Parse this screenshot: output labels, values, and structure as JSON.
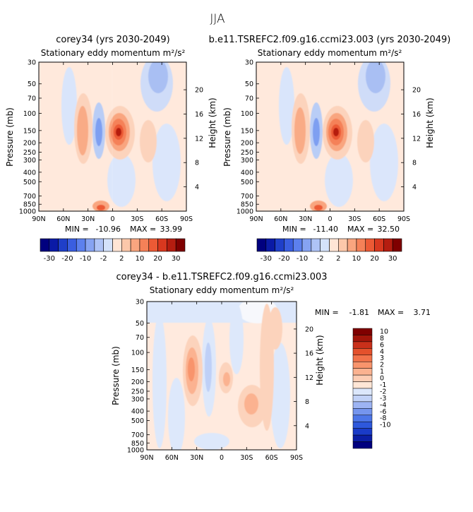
{
  "page": {
    "title": "JJA"
  },
  "shared": {
    "subtitle": "Stationary eddy momentum  m²/s²",
    "pressure_label": "Pressure (mb)",
    "height_label": "Height (km)",
    "pressure_ticks": [
      "30",
      "50",
      "70",
      "100",
      "150",
      "200",
      "250",
      "300",
      "400",
      "500",
      "700",
      "850",
      "1000"
    ],
    "height_ticks": [
      "20",
      "16",
      "12",
      "8",
      "4"
    ],
    "lat_ticks": [
      "90N",
      "60N",
      "30N",
      "0",
      "30S",
      "60S",
      "90S"
    ]
  },
  "chart_data": [
    {
      "type": "heatmap",
      "title": "corey34 (yrs 2030-2049)",
      "subtitle": "Stationary eddy momentum  m²/s²",
      "ylabel": "Pressure (mb)",
      "ylabel_right": "Height (km)",
      "stats": {
        "min_label": "MIN =",
        "min": "-10.96",
        "max_label": "MAX =",
        "max": "33.99"
      },
      "colorbar": {
        "orientation": "horizontal",
        "labels": [
          "-30",
          "-20",
          "-10",
          "-2",
          "2",
          "10",
          "20",
          "30"
        ]
      },
      "features": [
        {
          "kind": "max",
          "lat": -5,
          "pressure": 150,
          "value": 33.99
        },
        {
          "kind": "min",
          "lat": 18,
          "pressure": 150,
          "value": -10.96
        }
      ]
    },
    {
      "type": "heatmap",
      "title": "b.e11.TSREFC2.f09.g16.ccmi23.003 (yrs 2030-2049)",
      "subtitle": "Stationary eddy momentum  m²/s²",
      "ylabel": "Pressure (mb)",
      "ylabel_right": "Height (km)",
      "stats": {
        "min_label": "MIN =",
        "min": "-11.40",
        "max_label": "MAX =",
        "max": "32.50"
      },
      "colorbar": {
        "orientation": "horizontal",
        "labels": [
          "-30",
          "-20",
          "-10",
          "-2",
          "2",
          "10",
          "20",
          "30"
        ]
      },
      "features": [
        {
          "kind": "max",
          "lat": -5,
          "pressure": 150,
          "value": 32.5
        },
        {
          "kind": "min",
          "lat": 18,
          "pressure": 150,
          "value": -11.4
        }
      ]
    },
    {
      "type": "heatmap",
      "title": "corey34 - b.e11.TSREFC2.f09.g16.ccmi23.003",
      "subtitle": "Stationary eddy momentum  m²/s²",
      "ylabel": "Pressure (mb)",
      "ylabel_right": "Height (km)",
      "stats": {
        "min_label": "MIN =",
        "min": "-1.81",
        "max_label": "MAX =",
        "max": "3.71"
      },
      "colorbar": {
        "orientation": "vertical",
        "labels": [
          "10",
          "8",
          "6",
          "4",
          "3",
          "2",
          "1",
          "0",
          "-1",
          "-2",
          "-3",
          "-4",
          "-6",
          "-8",
          "-10"
        ]
      },
      "features": [
        {
          "kind": "max",
          "lat": 28,
          "pressure": 150,
          "value": 3.71
        },
        {
          "kind": "min",
          "lat": 12,
          "pressure": 150,
          "value": -1.81
        }
      ]
    }
  ],
  "colors": {
    "neg": [
      "#00007f",
      "#0a1aa6",
      "#1f3fc9",
      "#3a5ee0",
      "#5c80ee",
      "#86a3f2",
      "#aec3f6",
      "#d4e2fa"
    ],
    "pos": [
      "#ffe5d5",
      "#fcc8aa",
      "#f9a57f",
      "#f58158",
      "#ec5a35",
      "#d8381f",
      "#b51d10",
      "#7f0000"
    ],
    "diff_neg": [
      "#00007f",
      "#0b1ea5",
      "#1a3bc8",
      "#2e58dc",
      "#4d76e8",
      "#7595ee",
      "#9db4f3",
      "#c2d2f7",
      "#dce7fb"
    ],
    "diff_pos": [
      "#ffe6d6",
      "#fdcdb4",
      "#fbb290",
      "#f8946c",
      "#f2734b",
      "#e4512c",
      "#c9301a",
      "#a2150a",
      "#7f0000"
    ]
  }
}
